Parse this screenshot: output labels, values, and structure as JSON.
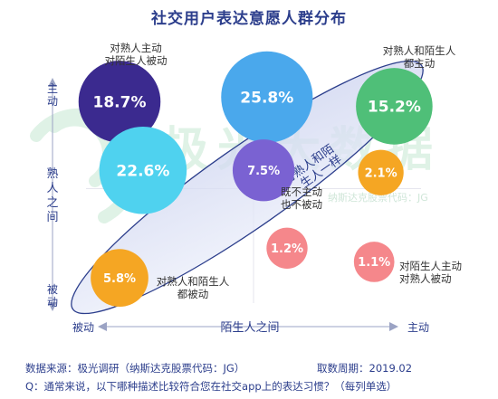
{
  "chart_data": {
    "type": "scatter",
    "title": "社交用户表达意愿人群分布",
    "xlabel": "陌生人之间",
    "ylabel": "熟人之间",
    "x_tick_labels": [
      "被动",
      "主动"
    ],
    "y_tick_labels": [
      "主动",
      "被动"
    ],
    "xlim": [
      0,
      1
    ],
    "ylim": [
      0,
      1
    ],
    "points": [
      {
        "value": "18.7%",
        "x": 0.1,
        "y": 0.88,
        "color": "#3b2a8f",
        "label": "对熟人主动\n对陌生人被动"
      },
      {
        "value": "25.8%",
        "x": 0.54,
        "y": 0.9,
        "color": "#4aa8ec",
        "label": ""
      },
      {
        "value": "15.2%",
        "x": 0.92,
        "y": 0.86,
        "color": "#4fbf78",
        "label": "对熟人和陌生人\n都主动"
      },
      {
        "value": "22.6%",
        "x": 0.17,
        "y": 0.58,
        "color": "#4fd2ef",
        "label": ""
      },
      {
        "value": "7.5%",
        "x": 0.53,
        "y": 0.58,
        "color": "#7a62d2",
        "label": "既不主动\n也不被动"
      },
      {
        "value": "2.1%",
        "x": 0.88,
        "y": 0.57,
        "color": "#f5a623",
        "label": ""
      },
      {
        "value": "1.2%",
        "x": 0.6,
        "y": 0.24,
        "color": "#f5878b",
        "label": ""
      },
      {
        "value": "5.8%",
        "x": 0.1,
        "y": 0.11,
        "color": "#f5a623",
        "label": "对熟人和陌生人\n都被动"
      },
      {
        "value": "1.1%",
        "x": 0.86,
        "y": 0.18,
        "color": "#f5878b",
        "label": "对陌生人主动\n对熟人被动"
      }
    ],
    "annotation": "对熟人和陌\n生人一样",
    "grid": false,
    "legend": "none"
  },
  "watermark": "极光大数据",
  "watermark_sub": "纳斯达克股票代码：JG",
  "footer": {
    "source": "数据来源：极光调研（纳斯达克股票代码：JG）",
    "period": "取数周期：2019.02",
    "question": "Q：通常来说，以下哪种描述比较符合您在社交app上的表达习惯？（每列单选）"
  }
}
